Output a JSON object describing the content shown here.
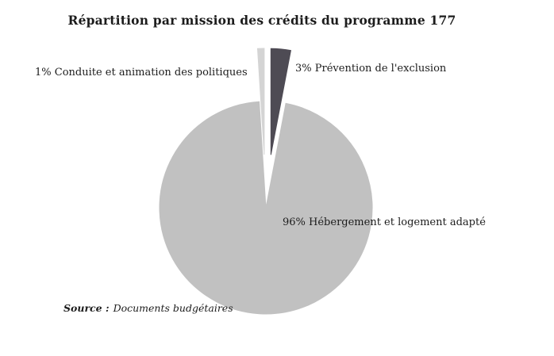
{
  "chart_data": {
    "type": "pie",
    "title": "Répartition par mission des crédits du programme 177",
    "categories": [
      "Conduite et animation des politiques",
      "Prévention de l'exclusion",
      "Hébergement et logement adapté"
    ],
    "values": [
      1,
      3,
      96
    ],
    "unit": "%",
    "colors": [
      "#d4d4d4",
      "#4e4b54",
      "#c1c1c1"
    ],
    "explode": [
      0.5,
      0.5,
      0
    ],
    "rotation_deg": -3.6,
    "direction": "clockwise",
    "legend": "none",
    "data_labels": [
      "1% Conduite et animation des politiques",
      "3% Prévention de l'exclusion",
      "96% Hébergement et logement adapté"
    ],
    "source": {
      "prefix": "Source :",
      "text": "Documents budgétaires"
    }
  }
}
